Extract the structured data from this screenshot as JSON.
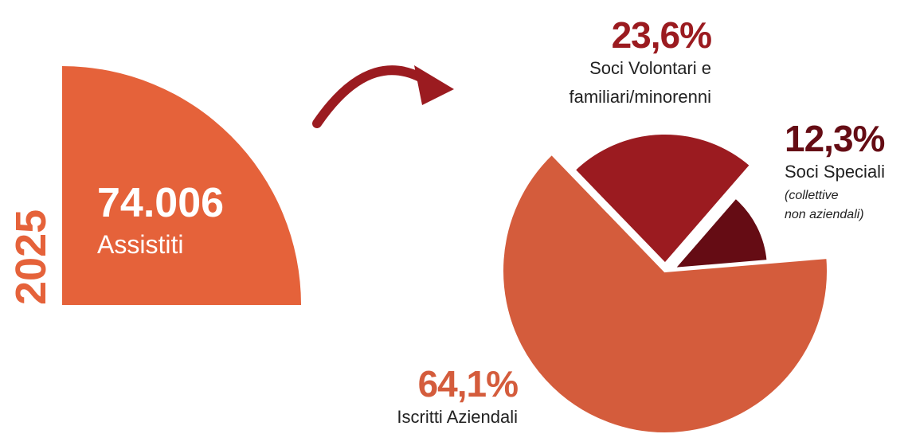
{
  "header": {
    "year": "2025",
    "total": "74.006",
    "total_label": "Assistiti"
  },
  "chart_data": {
    "type": "pie",
    "categories": [
      "Soci Volontari e familiari/minorenni",
      "Soci Speciali",
      "Iscritti Aziendali"
    ],
    "values": [
      23.6,
      12.3,
      64.1
    ],
    "value_labels": [
      "23,6%",
      "12,3%",
      "64,1%"
    ],
    "colors": [
      "#9b1b20",
      "#650c14",
      "#d45c3c"
    ],
    "annotation": [
      "(collettive",
      "non aziendali)"
    ]
  }
}
